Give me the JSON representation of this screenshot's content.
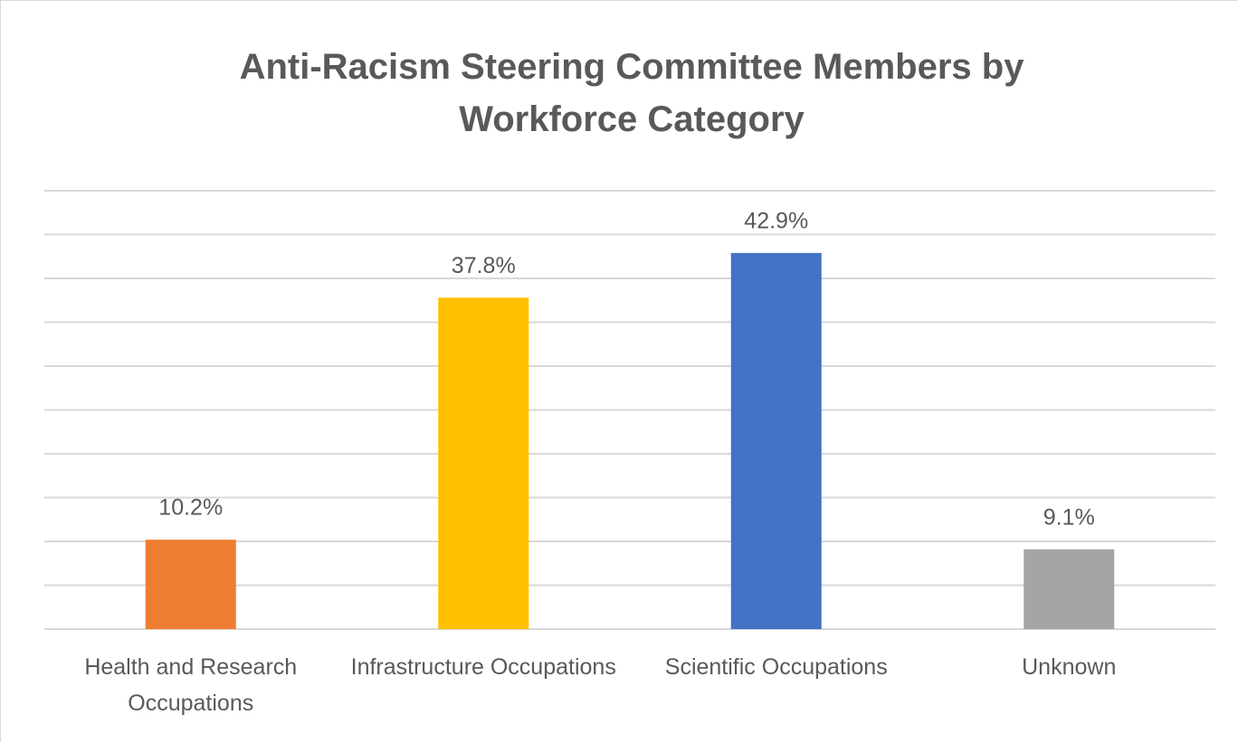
{
  "chart_data": {
    "type": "bar",
    "title": "Anti-Racism Steering Committee Members by Workforce Category",
    "categories": [
      "Health and Research Occupations",
      "Infrastructure Occupations",
      "Scientific Occupations",
      "Unknown"
    ],
    "values": [
      10.2,
      37.8,
      42.9,
      9.1
    ],
    "value_labels": [
      "10.2%",
      "37.8%",
      "42.9%",
      "9.1%"
    ],
    "colors": [
      "#ed7d31",
      "#ffc000",
      "#4472c4",
      "#a5a5a5"
    ],
    "ylim": [
      0,
      50
    ],
    "yticks": [
      0,
      5,
      10,
      15,
      20,
      25,
      30,
      35,
      40,
      45,
      50
    ],
    "grid": true
  }
}
